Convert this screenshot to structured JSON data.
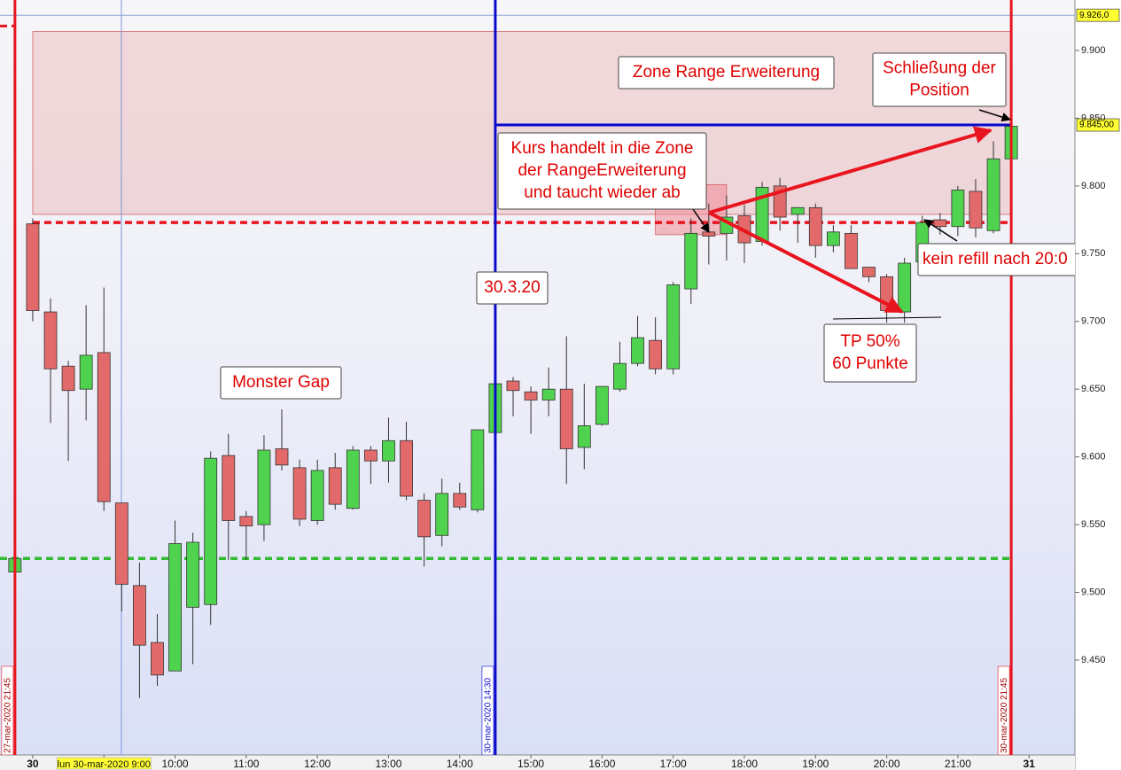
{
  "chart_data": {
    "type": "candlestick",
    "x": [
      7.75,
      8,
      8.25,
      8.5,
      8.75,
      9,
      9.25,
      9.5,
      9.75,
      10,
      10.25,
      10.5,
      10.75,
      11,
      11.25,
      11.5,
      11.75,
      12,
      12.25,
      12.5,
      12.75,
      13,
      13.25,
      13.5,
      13.75,
      14,
      14.25,
      14.5,
      14.75,
      15,
      15.25,
      15.5,
      15.75,
      16,
      16.25,
      16.5,
      16.75,
      17,
      17.25,
      17.5,
      17.75,
      18,
      18.25,
      18.5,
      18.75,
      19,
      19.25,
      19.5,
      19.75,
      20,
      20.25,
      20.5,
      20.75,
      21,
      21.25,
      21.5,
      21.75
    ],
    "series": [
      {
        "up_color": "#4fd34f",
        "down_color": "#e36a6a",
        "open": [
          9515,
          9772,
          9707,
          9667,
          9650,
          9677,
          9566,
          9505,
          9463,
          9442,
          9489,
          9491,
          9601,
          9556,
          9550,
          9606,
          9592,
          9553,
          9592,
          9562,
          9605,
          9597,
          9612,
          9568,
          9542,
          9573,
          9561,
          9618,
          9656,
          9648,
          9642,
          9650,
          9607,
          9624,
          9650,
          9669,
          9686,
          9665,
          9724,
          9766,
          9765,
          9778,
          9759,
          9800,
          9779,
          9784,
          9756,
          9765,
          9740,
          9733,
          9707,
          9744,
          9775,
          9770,
          9796,
          9767,
          9820
        ],
        "high": [
          9527,
          9776,
          9717,
          9671,
          9712,
          9725,
          9566,
          9522,
          9484,
          9553,
          9544,
          9604,
          9617,
          9560,
          9616,
          9635,
          9598,
          9598,
          9603,
          9608,
          9608,
          9629,
          9626,
          9573,
          9584,
          9581,
          9620,
          9654,
          9659,
          9652,
          9666,
          9689,
          9654,
          9652,
          9685,
          9704,
          9703,
          9729,
          9776,
          9787,
          9793,
          9786,
          9803,
          9806,
          9784,
          9787,
          9771,
          9771,
          9740,
          9735,
          9747,
          9778,
          9780,
          9800,
          9805,
          9833,
          9844
        ],
        "low": [
          9515,
          9700,
          9625,
          9597,
          9627,
          9560,
          9486,
          9422,
          9431,
          9442,
          9447,
          9476,
          9524,
          9524,
          9538,
          9590,
          9549,
          9550,
          9561,
          9561,
          9580,
          9581,
          9568,
          9519,
          9534,
          9561,
          9559,
          9617,
          9630,
          9617,
          9630,
          9580,
          9591,
          9623,
          9648,
          9667,
          9661,
          9661,
          9713,
          9742,
          9745,
          9743,
          9756,
          9767,
          9758,
          9747,
          9751,
          9739,
          9729,
          9699,
          9699,
          9741,
          9764,
          9763,
          9762,
          9765,
          9820
        ],
        "close": [
          9525,
          9708,
          9665,
          9649,
          9675,
          9567,
          9506,
          9461,
          9439,
          9536,
          9537,
          9599,
          9553,
          9549,
          9605,
          9594,
          9554,
          9590,
          9565,
          9605,
          9597,
          9612,
          9571,
          9541,
          9573,
          9563,
          9620,
          9654,
          9649,
          9642,
          9650,
          9606,
          9623,
          9652,
          9669,
          9688,
          9665,
          9727,
          9765,
          9763,
          9777,
          9758,
          9799,
          9777,
          9784,
          9756,
          9766,
          9739,
          9733,
          9708,
          9743,
          9773,
          9770,
          9797,
          9769,
          9820,
          9844
        ]
      }
    ],
    "xlim": [
      7.54,
      22.645
    ],
    "xticks": [
      {
        "value": 8,
        "label": "30"
      },
      {
        "value": 9,
        "label": "lun 30-mar-2020 9:00"
      },
      {
        "value": 10,
        "label": "10:00"
      },
      {
        "value": 11,
        "label": "11:00"
      },
      {
        "value": 12,
        "label": "12:00"
      },
      {
        "value": 13,
        "label": "13:00"
      },
      {
        "value": 14,
        "label": "14:00"
      },
      {
        "value": 15,
        "label": "15:00"
      },
      {
        "value": 16,
        "label": "16:00"
      },
      {
        "value": 17,
        "label": "17:00"
      },
      {
        "value": 18,
        "label": "18:00"
      },
      {
        "value": 19,
        "label": "19:00"
      },
      {
        "value": 20,
        "label": "20:00"
      },
      {
        "value": 21,
        "label": "21:00"
      },
      {
        "value": 22,
        "label": "31"
      }
    ],
    "ylim": [
      9380,
      9937.25
    ],
    "yticks": [
      {
        "value": 9450,
        "label": "9.450"
      },
      {
        "value": 9500,
        "label": "9.500"
      },
      {
        "value": 9550,
        "label": "9.550"
      },
      {
        "value": 9600,
        "label": "9.600"
      },
      {
        "value": 9650,
        "label": "9.650"
      },
      {
        "value": 9700,
        "label": "9.700"
      },
      {
        "value": 9750,
        "label": "9.750"
      },
      {
        "value": 9800,
        "label": "9.800"
      },
      {
        "value": 9850,
        "label": "9.850"
      },
      {
        "value": 9900,
        "label": "9.900"
      }
    ],
    "price_markers": [
      {
        "value": 9926,
        "label": "9.926,0"
      },
      {
        "value": 9845,
        "label": "9.845,00"
      }
    ],
    "levels": [
      {
        "value": 9926,
        "from": 7.54,
        "to": 22.645,
        "color": "#8fa3d8",
        "width": 1,
        "dash": false
      },
      {
        "value": 9918,
        "from": 7.54,
        "to": 7.75,
        "color": "#e8141e",
        "width": 3,
        "dash": true
      },
      {
        "value": 9773,
        "from": 8,
        "to": 21.75,
        "color": "#e8141e",
        "width": 3.5,
        "dash": true
      },
      {
        "value": 9525,
        "from": 7.54,
        "to": 21.75,
        "color": "#33bb33",
        "width": 3.5,
        "dash": true
      },
      {
        "value": 9845,
        "from": 14.5,
        "to": 21.75,
        "color": "#0a0acc",
        "width": 3,
        "dash": false
      }
    ],
    "vlines": [
      {
        "x": 7.75,
        "label": "27-mar-2020 21:45",
        "color": "#e8141e"
      },
      {
        "x": 14.5,
        "label": "30-mar-2020 14:30",
        "color": "#0a0acc"
      },
      {
        "x": 21.75,
        "label": "30-mar-2020 21:45",
        "color": "#e8141e"
      }
    ],
    "zones": [
      {
        "xlim": [
          8,
          21.75
        ],
        "ylim": [
          9779,
          9914
        ],
        "color": "#e8a0a0"
      },
      {
        "xlim": [
          16.75,
          17.75
        ],
        "ylim": [
          9764,
          9801
        ],
        "color": "#f08a95"
      }
    ],
    "annotations": [
      {
        "lines": [
          "Zone Range Erweiterung"
        ]
      },
      {
        "lines": [
          "Schließung der",
          "Position"
        ]
      },
      {
        "lines": [
          "Kurs handelt in die Zone",
          "der RangeErweiterung",
          "und taucht wieder ab"
        ]
      },
      {
        "lines": [
          "30.3.20"
        ]
      },
      {
        "lines": [
          "Monster Gap"
        ]
      },
      {
        "lines": [
          "TP 50%",
          "60 Punkte"
        ]
      },
      {
        "lines": [
          "kein refill nach 20:0"
        ]
      }
    ]
  }
}
